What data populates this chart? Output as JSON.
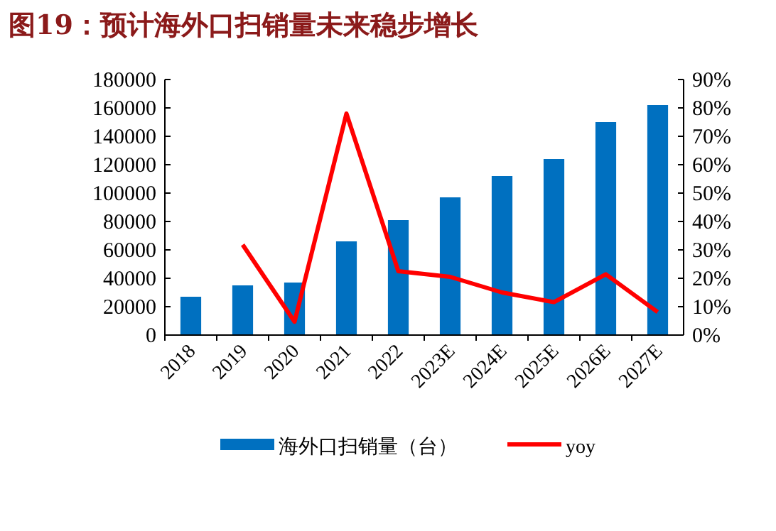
{
  "chart_data": {
    "type": "bar",
    "title": "图19：预计海外口扫销量未来稳步增长",
    "categories": [
      "2018",
      "2019",
      "2020",
      "2021",
      "2022",
      "2023E",
      "2024E",
      "2025E",
      "2026E",
      "2027E"
    ],
    "series": [
      {
        "name": "海外口扫销量（台）",
        "color": "#0070c0",
        "values": [
          27000,
          35000,
          37000,
          66000,
          81000,
          97000,
          112000,
          124000,
          150000,
          162000
        ]
      },
      {
        "name": "yoy",
        "type": "line",
        "axis": "y2",
        "color": "#ff0000",
        "values": [
          null,
          31.8,
          4.7,
          78,
          22.5,
          20.5,
          15,
          11.6,
          21.4,
          8.1
        ]
      }
    ],
    "ylim": [
      0,
      180000
    ],
    "yticks": [
      0,
      20000,
      40000,
      60000,
      80000,
      100000,
      120000,
      140000,
      160000,
      180000
    ],
    "y2lim": [
      0,
      90
    ],
    "y2ticks": [
      {
        "value": 0,
        "label": "0%"
      },
      {
        "value": 10,
        "label": "10%"
      },
      {
        "value": 20,
        "label": "20%"
      },
      {
        "value": 30,
        "label": "30%"
      },
      {
        "value": 40,
        "label": "40%"
      },
      {
        "value": 50,
        "label": "50%"
      },
      {
        "value": 60,
        "label": "60%"
      },
      {
        "value": 70,
        "label": "70%"
      },
      {
        "value": 80,
        "label": "80%"
      },
      {
        "value": 90,
        "label": "90%"
      }
    ],
    "legend": "bottom"
  }
}
